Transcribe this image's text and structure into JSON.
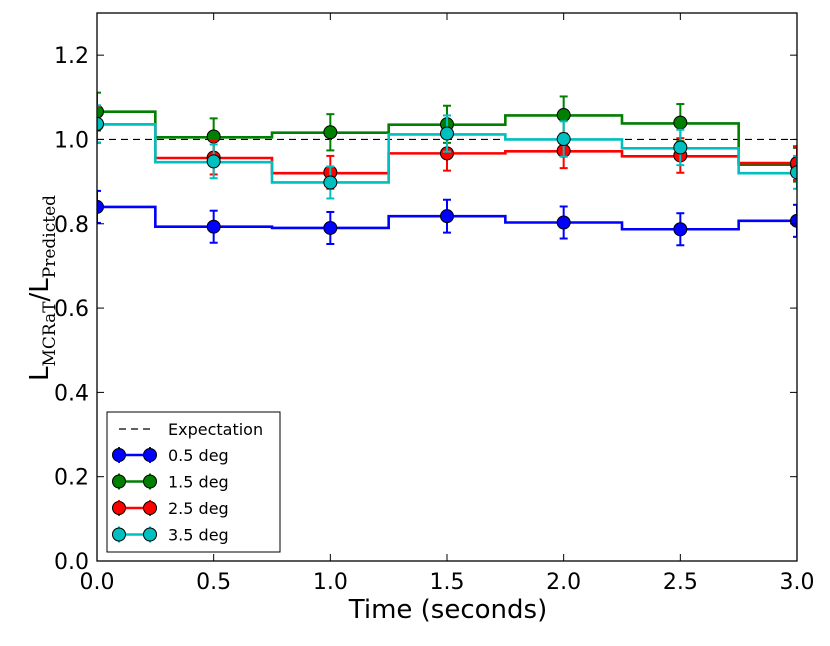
{
  "chart_data": {
    "type": "line",
    "title": "",
    "xlabel": "Time (seconds)",
    "ylabel": {
      "main1": "L",
      "sub1": "MCRaT",
      "slash": "/L",
      "sub2": "Predicted"
    },
    "xlim": [
      0.0,
      3.0
    ],
    "ylim": [
      0.0,
      1.3
    ],
    "xticks": [
      0.0,
      0.5,
      1.0,
      1.5,
      2.0,
      2.5,
      3.0
    ],
    "xtick_labels": [
      "0.0",
      "0.5",
      "1.0",
      "1.5",
      "2.0",
      "2.5",
      "3.0"
    ],
    "yticks": [
      0.0,
      0.2,
      0.4,
      0.6,
      0.8,
      1.0,
      1.2
    ],
    "ytick_labels": [
      "0.0",
      "0.2",
      "0.4",
      "0.6",
      "0.8",
      "1.0",
      "1.2"
    ],
    "grid": false,
    "legend_position": "bottom-left",
    "expectation": {
      "name": "Expectation",
      "value": 1.0,
      "color": "#000000"
    },
    "bin_edges": [
      0.0,
      0.25,
      0.75,
      1.25,
      1.75,
      2.25,
      2.75,
      3.0
    ],
    "x": [
      0.0,
      0.5,
      1.0,
      1.5,
      2.0,
      2.5,
      3.0
    ],
    "series": [
      {
        "name": "0.5 deg",
        "color": "#0000ff",
        "step_values": [
          0.84,
          0.793,
          0.79,
          0.818,
          0.803,
          0.787,
          0.807
        ],
        "points": [
          0.84,
          0.793,
          0.79,
          0.818,
          0.803,
          0.787,
          0.807
        ],
        "errors": [
          0.038,
          0.038,
          0.038,
          0.039,
          0.038,
          0.038,
          0.038
        ]
      },
      {
        "name": "1.5 deg",
        "color": "#007f00",
        "step_values": [
          1.066,
          1.005,
          1.016,
          1.035,
          1.057,
          1.038,
          0.94
        ],
        "points": [
          1.066,
          1.007,
          1.017,
          1.036,
          1.058,
          1.04,
          0.94
        ],
        "errors": [
          0.045,
          0.043,
          0.043,
          0.044,
          0.044,
          0.044,
          0.04
        ]
      },
      {
        "name": "2.5 deg",
        "color": "#ff0000",
        "step_values": [
          1.036,
          0.956,
          0.92,
          0.967,
          0.972,
          0.96,
          0.944
        ],
        "points": [
          1.036,
          0.957,
          0.922,
          0.967,
          0.973,
          0.962,
          0.944
        ],
        "errors": [
          0.044,
          0.04,
          0.039,
          0.041,
          0.041,
          0.041,
          0.04
        ]
      },
      {
        "name": "3.5 deg",
        "color": "#00bfbf",
        "step_values": [
          1.036,
          0.946,
          0.898,
          1.012,
          1.0,
          0.979,
          0.92
        ],
        "points": [
          1.037,
          0.948,
          0.898,
          1.014,
          1.001,
          0.981,
          0.922
        ],
        "errors": [
          0.044,
          0.04,
          0.038,
          0.043,
          0.042,
          0.042,
          0.039
        ]
      }
    ]
  }
}
